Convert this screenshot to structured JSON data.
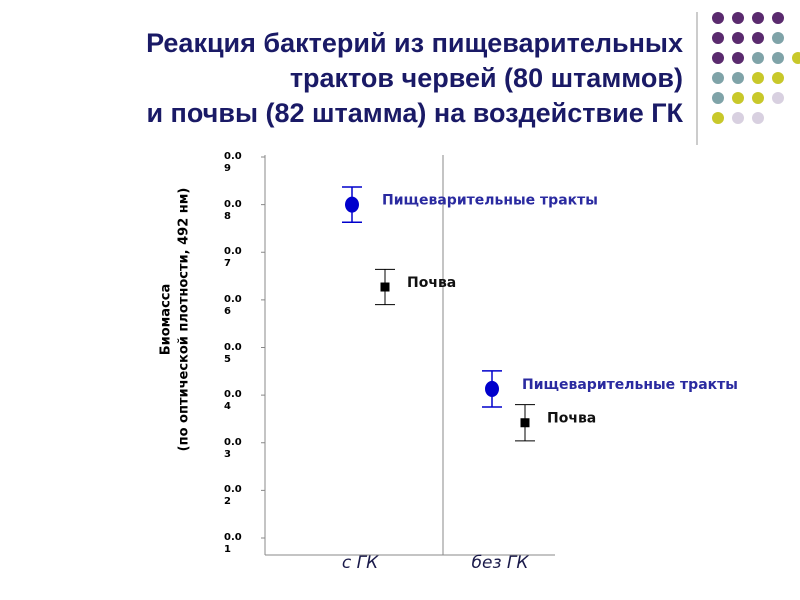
{
  "chart_data": {
    "type": "errorbar",
    "title": [
      "Реакция бактерий из пищеварительных",
      "трактов червей (80 штаммов)",
      "и почвы (82 штамма) на воздействие ГК"
    ],
    "y_label": [
      "Биомасса",
      "(по оптической плотности, 492 нм)"
    ],
    "categories": [
      "с ГК",
      "без ГК"
    ],
    "series": [
      {
        "name": "Пищеварительные тракты",
        "color": "#0000cc",
        "marker": "circle",
        "values": [
          0.08,
          0.0413
        ],
        "errors": [
          0.0037,
          0.0038
        ]
      },
      {
        "name": "Почва",
        "color": "#000000",
        "marker": "square",
        "values": [
          0.0627,
          0.0342
        ],
        "errors": [
          0.0037,
          0.0038
        ]
      }
    ],
    "ylim": [
      0.01,
      0.09
    ],
    "yticks": [
      0.01,
      0.02,
      0.03,
      0.04,
      0.05,
      0.06,
      0.07,
      0.08,
      0.09
    ]
  }
}
